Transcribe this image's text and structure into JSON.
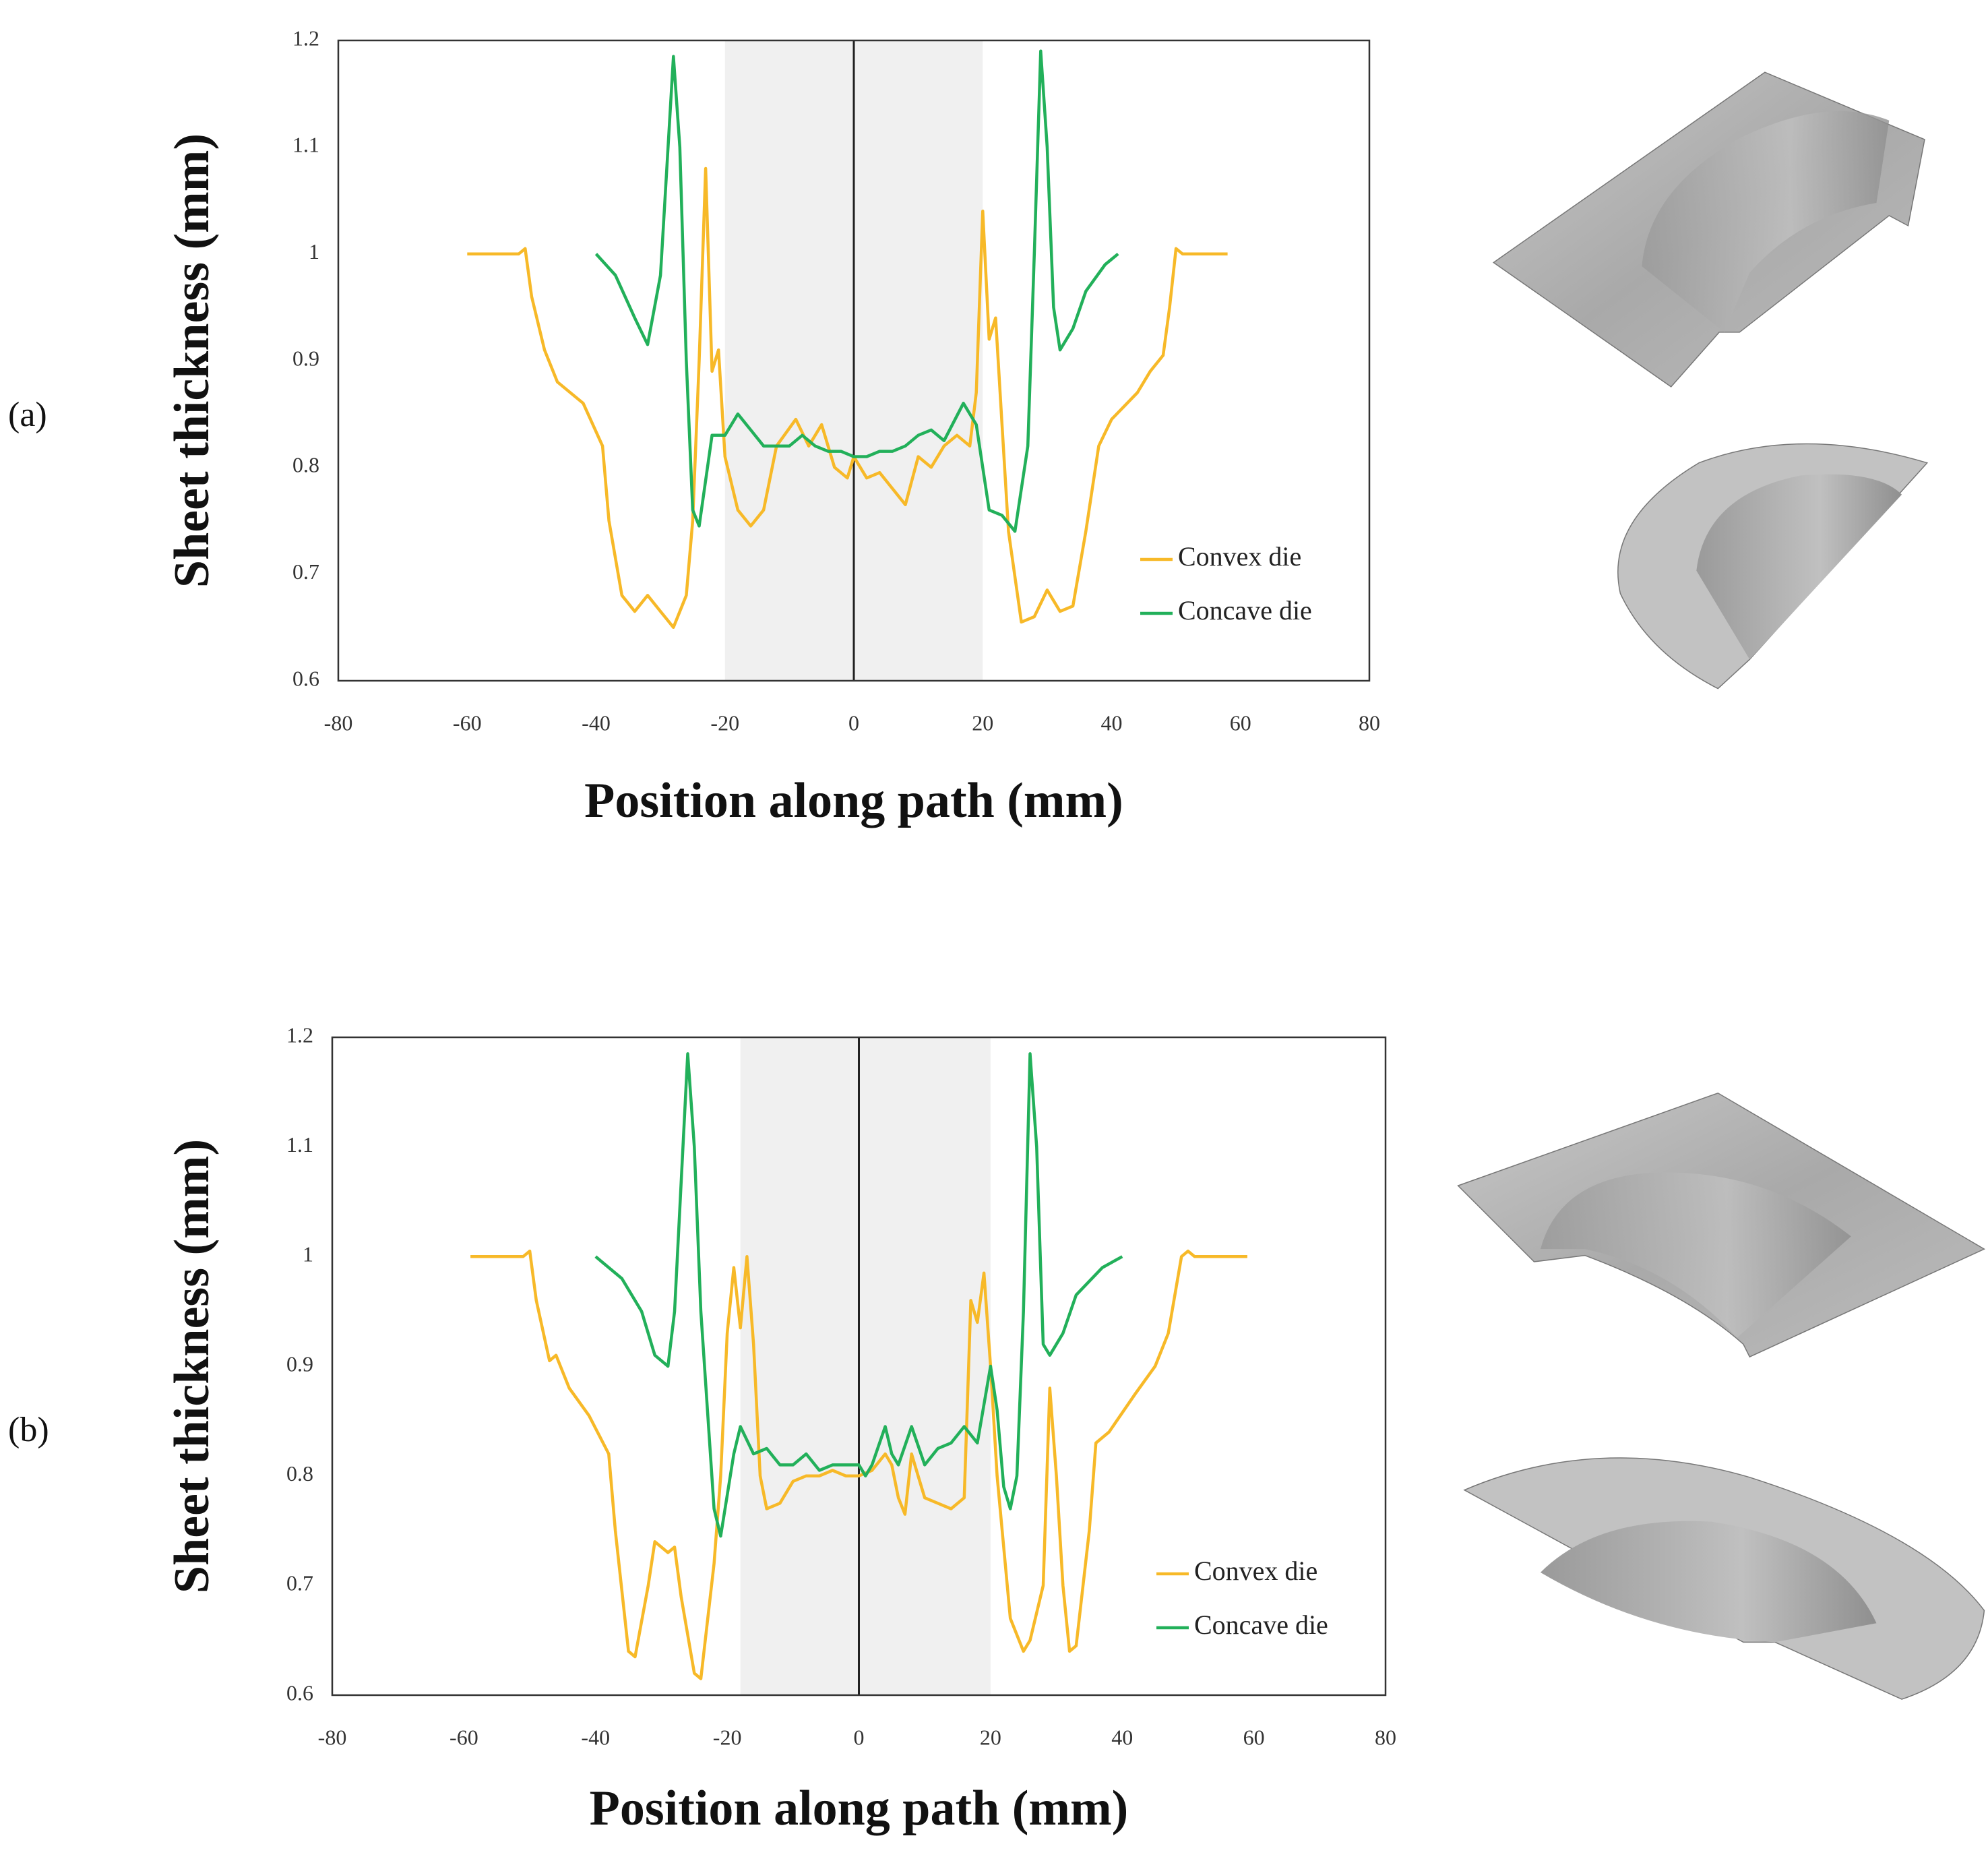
{
  "chart_data": [
    {
      "type": "line",
      "label": "(a)",
      "xlabel": "Position  along path (mm)",
      "ylabel": "Sheet  thickness  (mm)",
      "xlim": [
        -80,
        80
      ],
      "xticks": [
        -80,
        -60,
        -40,
        -20,
        0,
        20,
        40,
        60,
        80
      ],
      "ylim": [
        0.6,
        1.2
      ],
      "yticks": [
        0.6,
        0.7,
        0.8,
        0.9,
        1,
        1.1,
        1.2
      ],
      "shaded_region": [
        -20,
        20
      ],
      "vline": 0,
      "legend": "lower right",
      "series": [
        {
          "name": "Convex die",
          "color": "#f7b928",
          "x": [
            -60,
            -52,
            -51,
            -50,
            -48,
            -46,
            -42,
            -39,
            -38,
            -36,
            -34,
            -32,
            -30,
            -28,
            -26,
            -25,
            -24,
            -23,
            -22,
            -21,
            -20,
            -18,
            -16,
            -14,
            -12,
            -9,
            -7,
            -5,
            -3,
            -1,
            0,
            2,
            4,
            6,
            8,
            10,
            12,
            14,
            16,
            18,
            19,
            20,
            21,
            22,
            23,
            24,
            26,
            28,
            30,
            32,
            34,
            36,
            38,
            40,
            44,
            46,
            48,
            49,
            50,
            51,
            58
          ],
          "values": [
            1.0,
            1.0,
            1.005,
            0.96,
            0.91,
            0.88,
            0.86,
            0.82,
            0.75,
            0.68,
            0.665,
            0.68,
            0.665,
            0.65,
            0.68,
            0.75,
            0.9,
            1.08,
            0.89,
            0.91,
            0.81,
            0.76,
            0.745,
            0.76,
            0.82,
            0.845,
            0.82,
            0.84,
            0.8,
            0.79,
            0.81,
            0.79,
            0.795,
            0.78,
            0.765,
            0.81,
            0.8,
            0.82,
            0.83,
            0.82,
            0.87,
            1.04,
            0.92,
            0.94,
            0.84,
            0.74,
            0.655,
            0.66,
            0.685,
            0.665,
            0.67,
            0.74,
            0.82,
            0.845,
            0.87,
            0.89,
            0.905,
            0.95,
            1.005,
            1.0,
            1.0
          ]
        },
        {
          "name": "Concave die",
          "color": "#22b05a",
          "x": [
            -40,
            -37,
            -34,
            -32,
            -30,
            -28,
            -27,
            -26,
            -25,
            -24,
            -22,
            -20,
            -18,
            -16,
            -14,
            -10,
            -8,
            -6,
            -4,
            -2,
            0,
            2,
            4,
            6,
            8,
            10,
            12,
            14,
            17,
            19,
            21,
            23,
            25,
            27,
            28,
            29,
            30,
            31,
            32,
            34,
            36,
            39,
            41
          ],
          "values": [
            1.0,
            0.98,
            0.94,
            0.915,
            0.98,
            1.185,
            1.1,
            0.9,
            0.76,
            0.745,
            0.83,
            0.83,
            0.85,
            0.835,
            0.82,
            0.82,
            0.83,
            0.82,
            0.815,
            0.815,
            0.81,
            0.81,
            0.815,
            0.815,
            0.82,
            0.83,
            0.835,
            0.825,
            0.86,
            0.84,
            0.76,
            0.755,
            0.74,
            0.82,
            1.0,
            1.19,
            1.1,
            0.95,
            0.91,
            0.93,
            0.965,
            0.99,
            1.0
          ]
        }
      ]
    },
    {
      "type": "line",
      "label": "(b)",
      "xlabel": "Position  along path (mm)",
      "ylabel": "Sheet  thickness  (mm)",
      "xlim": [
        -80,
        80
      ],
      "xticks": [
        -80,
        -60,
        -40,
        -20,
        0,
        20,
        40,
        60,
        80
      ],
      "ylim": [
        0.6,
        1.2
      ],
      "yticks": [
        0.6,
        0.7,
        0.8,
        0.9,
        1,
        1.1,
        1.2
      ],
      "shaded_region": [
        -18,
        20
      ],
      "vline": 0,
      "legend": "lower right",
      "series": [
        {
          "name": "Convex die",
          "color": "#f7b928",
          "x": [
            -59,
            -51,
            -50,
            -49,
            -47,
            -46,
            -44,
            -41,
            -38,
            -37,
            -35,
            -34,
            -32,
            -31,
            -29,
            -28,
            -27,
            -25,
            -24,
            -22,
            -21,
            -20,
            -19,
            -18,
            -17,
            -16,
            -15,
            -14,
            -12,
            -10,
            -8,
            -6,
            -4,
            -2,
            0,
            2,
            4,
            5,
            6,
            7,
            8,
            9,
            10,
            12,
            14,
            16,
            17,
            18,
            19,
            20,
            21,
            23,
            25,
            26,
            28,
            29,
            30,
            31,
            32,
            33,
            35,
            36,
            38,
            42,
            45,
            47,
            49,
            50,
            51,
            59
          ],
          "values": [
            1.0,
            1.0,
            1.005,
            0.96,
            0.905,
            0.91,
            0.88,
            0.855,
            0.82,
            0.75,
            0.64,
            0.635,
            0.7,
            0.74,
            0.73,
            0.735,
            0.69,
            0.62,
            0.615,
            0.72,
            0.8,
            0.93,
            0.99,
            0.935,
            1.0,
            0.92,
            0.8,
            0.77,
            0.775,
            0.795,
            0.8,
            0.8,
            0.805,
            0.8,
            0.8,
            0.805,
            0.82,
            0.81,
            0.78,
            0.765,
            0.82,
            0.8,
            0.78,
            0.775,
            0.77,
            0.78,
            0.96,
            0.94,
            0.985,
            0.9,
            0.8,
            0.67,
            0.64,
            0.65,
            0.7,
            0.88,
            0.8,
            0.7,
            0.64,
            0.645,
            0.75,
            0.83,
            0.84,
            0.875,
            0.9,
            0.93,
            1.0,
            1.005,
            1.0,
            1.0
          ]
        },
        {
          "name": "Concave die",
          "color": "#22b05a",
          "x": [
            -40,
            -36,
            -33,
            -31,
            -29,
            -28,
            -26,
            -25,
            -24,
            -22,
            -21,
            -19,
            -18,
            -16,
            -14,
            -12,
            -10,
            -8,
            -6,
            -4,
            -2,
            0,
            1,
            2,
            4,
            5,
            6,
            8,
            10,
            12,
            14,
            16,
            18,
            20,
            21,
            22,
            23,
            24,
            25,
            26,
            27,
            28,
            29,
            31,
            33,
            37,
            40
          ],
          "values": [
            1.0,
            0.98,
            0.95,
            0.91,
            0.9,
            0.95,
            1.185,
            1.1,
            0.95,
            0.77,
            0.745,
            0.82,
            0.845,
            0.82,
            0.825,
            0.81,
            0.81,
            0.82,
            0.805,
            0.81,
            0.81,
            0.81,
            0.8,
            0.81,
            0.845,
            0.82,
            0.81,
            0.845,
            0.81,
            0.825,
            0.83,
            0.845,
            0.83,
            0.9,
            0.86,
            0.79,
            0.77,
            0.8,
            0.95,
            1.185,
            1.1,
            0.92,
            0.91,
            0.93,
            0.965,
            0.99,
            1.0
          ]
        }
      ]
    }
  ]
}
